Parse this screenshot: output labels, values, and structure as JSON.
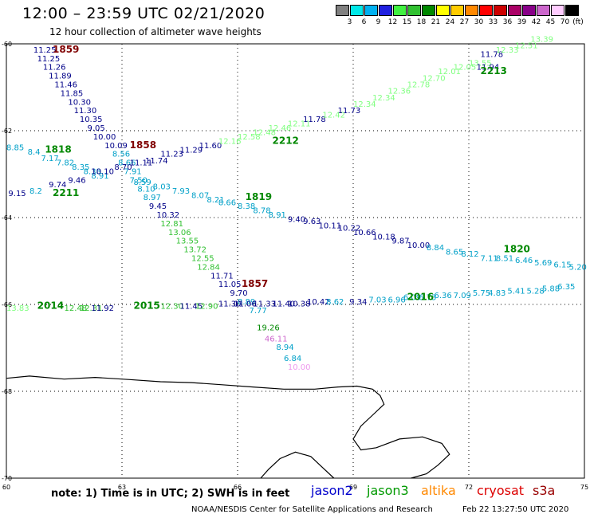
{
  "header": {
    "title": "12:00 – 23:59 UTC 02/21/2020",
    "subtitle": "12 hour collection of altimeter wave heights"
  },
  "legend": {
    "unit": "(ft)",
    "bins": [
      {
        "color": "#808080",
        "label": "3"
      },
      {
        "color": "#00e8e8",
        "label": "6"
      },
      {
        "color": "#00b0f0",
        "label": "9"
      },
      {
        "color": "#2020e0",
        "label": "12"
      },
      {
        "color": "#40f040",
        "label": "15"
      },
      {
        "color": "#30c030",
        "label": "18"
      },
      {
        "color": "#008800",
        "label": "21"
      },
      {
        "color": "#ffff00",
        "label": "24"
      },
      {
        "color": "#ffcc00",
        "label": "27"
      },
      {
        "color": "#ff8800",
        "label": "30"
      },
      {
        "color": "#ff0000",
        "label": "33"
      },
      {
        "color": "#cc0000",
        "label": "36"
      },
      {
        "color": "#aa0066",
        "label": "39"
      },
      {
        "color": "#880088",
        "label": "42"
      },
      {
        "color": "#cc66cc",
        "label": "45"
      },
      {
        "color": "#ffccff",
        "label": "70"
      },
      {
        "color": "#000000",
        "label": ""
      }
    ]
  },
  "axes": {
    "lon_ticks": [
      "60",
      "63",
      "66",
      "69",
      "72",
      "75"
    ],
    "lat_ticks": [
      "-60",
      "-62",
      "-64",
      "-66",
      "-68",
      "-70"
    ]
  },
  "passes": [
    {
      "label": "1859",
      "color": "#800000",
      "lon": 61.2,
      "lat": -60.2
    },
    {
      "label": "1858",
      "color": "#800000",
      "lon": 63.2,
      "lat": -62.4
    },
    {
      "label": "1857",
      "color": "#800000",
      "lon": 66.1,
      "lat": -65.6
    },
    {
      "label": "1818",
      "color": "#008800",
      "lon": 61.0,
      "lat": -62.5
    },
    {
      "label": "2211",
      "color": "#008800",
      "lon": 61.2,
      "lat": -63.5
    },
    {
      "label": "2212",
      "color": "#008800",
      "lon": 66.9,
      "lat": -62.3
    },
    {
      "label": "2213",
      "color": "#008800",
      "lon": 72.3,
      "lat": -60.7
    },
    {
      "label": "1819",
      "color": "#008800",
      "lon": 66.2,
      "lat": -63.6
    },
    {
      "label": "1820",
      "color": "#008800",
      "lon": 72.9,
      "lat": -64.8
    },
    {
      "label": "2014",
      "color": "#008800",
      "lon": 60.8,
      "lat": -66.1
    },
    {
      "label": "2015",
      "color": "#008800",
      "lon": 63.3,
      "lat": -66.1
    },
    {
      "label": "2016",
      "color": "#008800",
      "lon": 70.4,
      "lat": -65.9
    }
  ],
  "measurements": [
    {
      "v": "11.25",
      "c": "#000088",
      "lon": 60.7,
      "lat": -60.2
    },
    {
      "v": "11.25",
      "c": "#000088",
      "lon": 60.8,
      "lat": -60.4
    },
    {
      "v": "11.26",
      "c": "#000088",
      "lon": 60.95,
      "lat": -60.6
    },
    {
      "v": "11.89",
      "c": "#000088",
      "lon": 61.1,
      "lat": -60.8
    },
    {
      "v": "11.46",
      "c": "#000088",
      "lon": 61.25,
      "lat": -61.0
    },
    {
      "v": "11.85",
      "c": "#000088",
      "lon": 61.4,
      "lat": -61.2
    },
    {
      "v": "10.30",
      "c": "#000088",
      "lon": 61.6,
      "lat": -61.4
    },
    {
      "v": "11.30",
      "c": "#000088",
      "lon": 61.75,
      "lat": -61.6
    },
    {
      "v": "10.35",
      "c": "#000088",
      "lon": 61.9,
      "lat": -61.8
    },
    {
      "v": "9.05",
      "c": "#000088",
      "lon": 62.1,
      "lat": -62.0
    },
    {
      "v": "10.00",
      "c": "#000088",
      "lon": 62.25,
      "lat": -62.2
    },
    {
      "v": "10.09",
      "c": "#000088",
      "lon": 62.55,
      "lat": -62.4
    },
    {
      "v": "8.56",
      "c": "#00a0c8",
      "lon": 62.75,
      "lat": -62.6
    },
    {
      "v": "8.66",
      "c": "#00a0c8",
      "lon": 62.9,
      "lat": -62.8
    },
    {
      "v": "7.91",
      "c": "#00a0c8",
      "lon": 63.05,
      "lat": -63.0
    },
    {
      "v": "7.50",
      "c": "#00a0c8",
      "lon": 63.2,
      "lat": -63.2
    },
    {
      "v": "8.10",
      "c": "#00a0c8",
      "lon": 63.4,
      "lat": -63.4
    },
    {
      "v": "8.97",
      "c": "#00a0c8",
      "lon": 63.55,
      "lat": -63.6
    },
    {
      "v": "9.45",
      "c": "#000088",
      "lon": 63.7,
      "lat": -63.8
    },
    {
      "v": "10.32",
      "c": "#000088",
      "lon": 63.9,
      "lat": -64.0
    },
    {
      "v": "12.81",
      "c": "#30c030",
      "lon": 64.0,
      "lat": -64.2
    },
    {
      "v": "13.06",
      "c": "#30c030",
      "lon": 64.2,
      "lat": -64.4
    },
    {
      "v": "13.55",
      "c": "#30c030",
      "lon": 64.4,
      "lat": -64.6
    },
    {
      "v": "13.72",
      "c": "#30c030",
      "lon": 64.6,
      "lat": -64.8
    },
    {
      "v": "12.55",
      "c": "#30c030",
      "lon": 64.8,
      "lat": -65.0
    },
    {
      "v": "12.84",
      "c": "#30c030",
      "lon": 64.95,
      "lat": -65.2
    },
    {
      "v": "11.71",
      "c": "#000088",
      "lon": 65.3,
      "lat": -65.4
    },
    {
      "v": "11.05",
      "c": "#000088",
      "lon": 65.5,
      "lat": -65.6
    },
    {
      "v": "9.70",
      "c": "#000088",
      "lon": 65.8,
      "lat": -65.8
    },
    {
      "v": "8.89",
      "c": "#00a0c8",
      "lon": 66.0,
      "lat": -66.0
    },
    {
      "v": "7.77",
      "c": "#00a0c8",
      "lon": 66.3,
      "lat": -66.2
    },
    {
      "v": "19.26",
      "c": "#008800",
      "lon": 66.5,
      "lat": -66.6
    },
    {
      "v": "46.11",
      "c": "#cc66cc",
      "lon": 66.7,
      "lat": -66.85
    },
    {
      "v": "8.94",
      "c": "#00a0c8",
      "lon": 67.0,
      "lat": -67.05
    },
    {
      "v": "6.84",
      "c": "#00a0c8",
      "lon": 67.2,
      "lat": -67.3
    },
    {
      "v": "10.00",
      "c": "#ee99ee",
      "lon": 67.3,
      "lat": -67.5
    },
    {
      "v": "8.85",
      "c": "#00a0c8",
      "lon": 60.0,
      "lat": -62.45
    },
    {
      "v": "8.4",
      "c": "#00a0c8",
      "lon": 60.55,
      "lat": -62.55
    },
    {
      "v": "7.17",
      "c": "#00a0c8",
      "lon": 60.9,
      "lat": -62.7
    },
    {
      "v": "7.82",
      "c": "#00a0c8",
      "lon": 61.3,
      "lat": -62.8
    },
    {
      "v": "8.35",
      "c": "#00a0c8",
      "lon": 61.7,
      "lat": -62.9
    },
    {
      "v": "8.38",
      "c": "#00a0c8",
      "lon": 62.0,
      "lat": -63.0
    },
    {
      "v": "8.91",
      "c": "#00a0c8",
      "lon": 62.2,
      "lat": -63.1
    },
    {
      "v": "8.59",
      "c": "#00a0c8",
      "lon": 63.3,
      "lat": -63.25
    },
    {
      "v": "8.03",
      "c": "#00a0c8",
      "lon": 63.8,
      "lat": -63.35
    },
    {
      "v": "7.93",
      "c": "#00a0c8",
      "lon": 64.3,
      "lat": -63.45
    },
    {
      "v": "8.07",
      "c": "#00a0c8",
      "lon": 64.8,
      "lat": -63.55
    },
    {
      "v": "8.21",
      "c": "#00a0c8",
      "lon": 65.2,
      "lat": -63.65
    },
    {
      "v": "8.66",
      "c": "#00a0c8",
      "lon": 65.5,
      "lat": -63.72
    },
    {
      "v": "8.38",
      "c": "#00a0c8",
      "lon": 66.0,
      "lat": -63.8
    },
    {
      "v": "8.78",
      "c": "#00a0c8",
      "lon": 66.4,
      "lat": -63.9
    },
    {
      "v": "8.91",
      "c": "#00a0c8",
      "lon": 66.8,
      "lat": -64.0
    },
    {
      "v": "9.40",
      "c": "#000088",
      "lon": 67.3,
      "lat": -64.1
    },
    {
      "v": "9.63",
      "c": "#000088",
      "lon": 67.7,
      "lat": -64.15
    },
    {
      "v": "10.11",
      "c": "#000088",
      "lon": 68.1,
      "lat": -64.25
    },
    {
      "v": "10.22",
      "c": "#000088",
      "lon": 68.6,
      "lat": -64.3
    },
    {
      "v": "10.66",
      "c": "#000088",
      "lon": 69.0,
      "lat": -64.4
    },
    {
      "v": "10.18",
      "c": "#000088",
      "lon": 69.5,
      "lat": -64.5
    },
    {
      "v": "9.87",
      "c": "#000088",
      "lon": 70.0,
      "lat": -64.6
    },
    {
      "v": "10.00",
      "c": "#000088",
      "lon": 70.4,
      "lat": -64.7
    },
    {
      "v": "8.84",
      "c": "#00a0c8",
      "lon": 70.9,
      "lat": -64.75
    },
    {
      "v": "8.65",
      "c": "#00a0c8",
      "lon": 71.4,
      "lat": -64.85
    },
    {
      "v": "8.12",
      "c": "#00a0c8",
      "lon": 71.8,
      "lat": -64.9
    },
    {
      "v": "7.11",
      "c": "#00a0c8",
      "lon": 72.3,
      "lat": -65.0
    },
    {
      "v": "8.51",
      "c": "#00a0c8",
      "lon": 72.7,
      "lat": -65.0
    },
    {
      "v": "6.46",
      "c": "#00a0c8",
      "lon": 73.2,
      "lat": -65.05
    },
    {
      "v": "5.69",
      "c": "#00a0c8",
      "lon": 73.7,
      "lat": -65.1
    },
    {
      "v": "6.15",
      "c": "#00a0c8",
      "lon": 74.2,
      "lat": -65.15
    },
    {
      "v": "5.20",
      "c": "#00a0c8",
      "lon": 74.6,
      "lat": -65.2
    },
    {
      "v": "9.15",
      "c": "#000088",
      "lon": 60.05,
      "lat": -63.5
    },
    {
      "v": "8.2",
      "c": "#00a0c8",
      "lon": 60.6,
      "lat": -63.45
    },
    {
      "v": "9.74",
      "c": "#000088",
      "lon": 61.1,
      "lat": -63.3
    },
    {
      "v": "9.46",
      "c": "#000088",
      "lon": 61.6,
      "lat": -63.2
    },
    {
      "v": "10.10",
      "c": "#000088",
      "lon": 62.2,
      "lat": -63.0
    },
    {
      "v": "8.70",
      "c": "#000088",
      "lon": 62.8,
      "lat": -62.9
    },
    {
      "v": "11.11",
      "c": "#000088",
      "lon": 63.2,
      "lat": -62.8
    },
    {
      "v": "11.74",
      "c": "#000088",
      "lon": 63.6,
      "lat": -62.75
    },
    {
      "v": "11.23",
      "c": "#000088",
      "lon": 64.0,
      "lat": -62.6
    },
    {
      "v": "11.29",
      "c": "#000088",
      "lon": 64.5,
      "lat": -62.5
    },
    {
      "v": "11.60",
      "c": "#000088",
      "lon": 65.0,
      "lat": -62.4
    },
    {
      "v": "12.16",
      "c": "#80ff80",
      "lon": 65.5,
      "lat": -62.3
    },
    {
      "v": "12.58",
      "c": "#80ff80",
      "lon": 66.0,
      "lat": -62.2
    },
    {
      "v": "12.48",
      "c": "#80ff80",
      "lon": 66.4,
      "lat": -62.1
    },
    {
      "v": "12.46",
      "c": "#80ff80",
      "lon": 66.8,
      "lat": -62.0
    },
    {
      "v": "12.11",
      "c": "#80ff80",
      "lon": 67.3,
      "lat": -61.9
    },
    {
      "v": "11.78",
      "c": "#000088",
      "lon": 67.7,
      "lat": -61.8
    },
    {
      "v": "12.42",
      "c": "#80ff80",
      "lon": 68.2,
      "lat": -61.7
    },
    {
      "v": "11.73",
      "c": "#000088",
      "lon": 68.6,
      "lat": -61.6
    },
    {
      "v": "12.34",
      "c": "#80ff80",
      "lon": 69.0,
      "lat": -61.45
    },
    {
      "v": "12.34",
      "c": "#80ff80",
      "lon": 69.5,
      "lat": -61.3
    },
    {
      "v": "12.36",
      "c": "#80ff80",
      "lon": 69.9,
      "lat": -61.15
    },
    {
      "v": "12.78",
      "c": "#80ff80",
      "lon": 70.4,
      "lat": -61.0
    },
    {
      "v": "12.70",
      "c": "#80ff80",
      "lon": 70.8,
      "lat": -60.85
    },
    {
      "v": "12.01",
      "c": "#80ff80",
      "lon": 71.2,
      "lat": -60.7
    },
    {
      "v": "12.05",
      "c": "#80ff80",
      "lon": 71.6,
      "lat": -60.6
    },
    {
      "v": "13.55",
      "c": "#80ff80",
      "lon": 72.0,
      "lat": -60.5
    },
    {
      "v": "11.94",
      "c": "#000088",
      "lon": 72.2,
      "lat": -60.6
    },
    {
      "v": "11.78",
      "c": "#000088",
      "lon": 72.3,
      "lat": -60.3
    },
    {
      "v": "12.33",
      "c": "#80ff80",
      "lon": 72.7,
      "lat": -60.2
    },
    {
      "v": "12.51",
      "c": "#80ff80",
      "lon": 73.2,
      "lat": -60.1
    },
    {
      "v": "13.39",
      "c": "#80ff80",
      "lon": 73.6,
      "lat": -59.95
    },
    {
      "v": "13.83",
      "c": "#80ff80",
      "lon": 60.0,
      "lat": -66.15
    },
    {
      "v": "12.48",
      "c": "#30c030",
      "lon": 61.5,
      "lat": -66.15
    },
    {
      "v": "12.31",
      "c": "#30c030",
      "lon": 61.9,
      "lat": -66.15
    },
    {
      "v": "11.92",
      "c": "#000088",
      "lon": 62.2,
      "lat": -66.15
    },
    {
      "v": "12.30",
      "c": "#30c030",
      "lon": 64.0,
      "lat": -66.1
    },
    {
      "v": "11.45",
      "c": "#000088",
      "lon": 64.5,
      "lat": -66.1
    },
    {
      "v": "12.90",
      "c": "#30c030",
      "lon": 64.9,
      "lat": -66.1
    },
    {
      "v": "11.30",
      "c": "#000088",
      "lon": 65.5,
      "lat": -66.05
    },
    {
      "v": "11.06",
      "c": "#000088",
      "lon": 65.9,
      "lat": -66.05
    },
    {
      "v": "11.33",
      "c": "#000088",
      "lon": 66.4,
      "lat": -66.05
    },
    {
      "v": "11.40",
      "c": "#000088",
      "lon": 66.9,
      "lat": -66.05
    },
    {
      "v": "10.38",
      "c": "#000088",
      "lon": 67.3,
      "lat": -66.05
    },
    {
      "v": "10.42",
      "c": "#000088",
      "lon": 67.8,
      "lat": -66.0
    },
    {
      "v": "8.62",
      "c": "#00a0c8",
      "lon": 68.3,
      "lat": -66.0
    },
    {
      "v": "9.34",
      "c": "#000088",
      "lon": 68.9,
      "lat": -66.0
    },
    {
      "v": "7.03",
      "c": "#00a0c8",
      "lon": 69.4,
      "lat": -65.95
    },
    {
      "v": "6.96",
      "c": "#00a0c8",
      "lon": 69.9,
      "lat": -65.95
    },
    {
      "v": "6.09",
      "c": "#00a0c8",
      "lon": 70.3,
      "lat": -65.9
    },
    {
      "v": "6.73",
      "c": "#00a0c8",
      "lon": 70.7,
      "lat": -65.9
    },
    {
      "v": "6.36",
      "c": "#00a0c8",
      "lon": 71.1,
      "lat": -65.85
    },
    {
      "v": "7.09",
      "c": "#00a0c8",
      "lon": 71.6,
      "lat": -65.85
    },
    {
      "v": "5.75",
      "c": "#00a0c8",
      "lon": 72.1,
      "lat": -65.8
    },
    {
      "v": "4.83",
      "c": "#00a0c8",
      "lon": 72.5,
      "lat": -65.8
    },
    {
      "v": "5.41",
      "c": "#00a0c8",
      "lon": 73.0,
      "lat": -65.75
    },
    {
      "v": "5.28",
      "c": "#00a0c8",
      "lon": 73.5,
      "lat": -65.75
    },
    {
      "v": "6.35",
      "c": "#00a0c8",
      "lon": 74.3,
      "lat": -65.65
    },
    {
      "v": "5.88",
      "c": "#00a0c8",
      "lon": 73.9,
      "lat": -65.7
    }
  ],
  "coastline": [
    [
      60,
      -67.7
    ],
    [
      60.6,
      -67.65
    ],
    [
      61.5,
      -67.72
    ],
    [
      62.3,
      -67.68
    ],
    [
      63.2,
      -67.73
    ],
    [
      64.0,
      -67.78
    ],
    [
      64.8,
      -67.8
    ],
    [
      65.6,
      -67.85
    ],
    [
      66.4,
      -67.9
    ],
    [
      67.2,
      -67.95
    ],
    [
      68.0,
      -67.95
    ],
    [
      68.6,
      -67.9
    ],
    [
      69.1,
      -67.88
    ],
    [
      69.5,
      -67.95
    ],
    [
      69.7,
      -68.1
    ],
    [
      69.8,
      -68.3
    ],
    [
      69.5,
      -68.55
    ],
    [
      69.2,
      -68.8
    ],
    [
      69.0,
      -69.1
    ],
    [
      69.2,
      -69.35
    ],
    [
      69.6,
      -69.3
    ],
    [
      70.2,
      -69.1
    ],
    [
      70.8,
      -69.05
    ],
    [
      71.3,
      -69.2
    ],
    [
      71.5,
      -69.45
    ],
    [
      71.2,
      -69.7
    ],
    [
      70.9,
      -69.9
    ],
    [
      70.5,
      -70.0
    ]
  ],
  "coastline2": [
    [
      66.6,
      -70.0
    ],
    [
      66.8,
      -69.8
    ],
    [
      67.1,
      -69.55
    ],
    [
      67.5,
      -69.4
    ],
    [
      67.9,
      -69.5
    ],
    [
      68.2,
      -69.75
    ],
    [
      68.5,
      -70.0
    ]
  ],
  "note": "note:  1) Time is in UTC;  2) SWH is in feet",
  "satellites": [
    {
      "name": "jason2",
      "color": "#0000cc"
    },
    {
      "name": "jason3",
      "color": "#009900"
    },
    {
      "name": "altika",
      "color": "#ff8800"
    },
    {
      "name": "cryosat",
      "color": "#dd0000"
    },
    {
      "name": "s3a",
      "color": "#990000"
    }
  ],
  "credit": "NOAA/NESDIS Center for Satellite Applications and Research",
  "timestamp": "Feb 22 13:27:50 UTC 2020"
}
